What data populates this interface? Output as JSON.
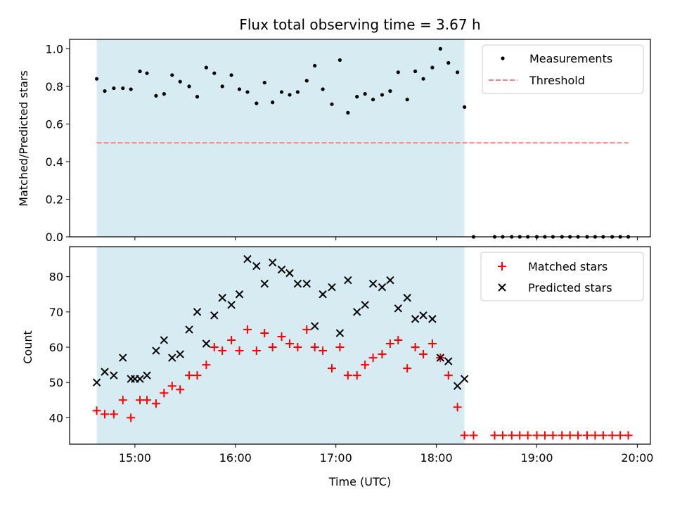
{
  "chart_data": [
    {
      "type": "scatter",
      "title": "Flux total observing time = 3.67 h",
      "xlabel": "",
      "ylabel": "Matched/Predicted stars",
      "xlim": [
        14.35,
        20.13
      ],
      "ylim": [
        0,
        1.05
      ],
      "yticks": [
        0.0,
        0.2,
        0.4,
        0.6,
        0.8,
        1.0
      ],
      "ytick_labels": [
        "0.0",
        "0.2",
        "0.4",
        "0.6",
        "0.8",
        "1.0"
      ],
      "shaded_span": [
        14.62,
        18.28
      ],
      "legend_position": "top-right",
      "series": [
        {
          "name": "Measurements",
          "marker": "dot",
          "color": "#000000",
          "x": [
            14.62,
            14.7,
            14.79,
            14.88,
            14.96,
            15.05,
            15.12,
            15.21,
            15.29,
            15.37,
            15.45,
            15.54,
            15.62,
            15.71,
            15.79,
            15.87,
            15.96,
            16.04,
            16.12,
            16.21,
            16.29,
            16.37,
            16.46,
            16.54,
            16.62,
            16.71,
            16.79,
            16.87,
            16.96,
            17.04,
            17.12,
            17.21,
            17.29,
            17.37,
            17.46,
            17.54,
            17.62,
            17.71,
            17.79,
            17.87,
            17.96,
            18.04,
            18.12,
            18.21,
            18.28,
            18.37,
            18.58,
            18.66,
            18.75,
            18.83,
            18.91,
            19.0,
            19.08,
            19.16,
            19.25,
            19.33,
            19.41,
            19.5,
            19.58,
            19.66,
            19.75,
            19.83,
            19.91
          ],
          "y": [
            0.84,
            0.775,
            0.79,
            0.79,
            0.785,
            0.88,
            0.87,
            0.75,
            0.76,
            0.86,
            0.825,
            0.8,
            0.745,
            0.9,
            0.87,
            0.8,
            0.86,
            0.785,
            0.77,
            0.71,
            0.82,
            0.715,
            0.77,
            0.755,
            0.77,
            0.83,
            0.91,
            0.785,
            0.705,
            0.94,
            0.66,
            0.745,
            0.76,
            0.73,
            0.755,
            0.775,
            0.875,
            0.73,
            0.88,
            0.84,
            0.9,
            1.0,
            0.925,
            0.875,
            0.69,
            0.0,
            0.0,
            0.0,
            0.0,
            0.0,
            0.0,
            0.0,
            0.0,
            0.0,
            0.0,
            0.0,
            0.0,
            0.0,
            0.0,
            0.0,
            0.0,
            0.0,
            0.0
          ]
        },
        {
          "name": "Threshold",
          "style": "dashed-line",
          "color": "#ff7f7f",
          "x": [
            14.62,
            19.91
          ],
          "y": [
            0.5,
            0.5
          ]
        }
      ]
    },
    {
      "type": "scatter",
      "title": "",
      "xlabel": "Time (UTC)",
      "ylabel": "Count",
      "xlim": [
        14.35,
        20.13
      ],
      "ylim": [
        32.5,
        88.5
      ],
      "yticks": [
        40,
        50,
        60,
        70,
        80
      ],
      "ytick_labels": [
        "40",
        "50",
        "60",
        "70",
        "80"
      ],
      "xticks": [
        15,
        16,
        17,
        18,
        19,
        20
      ],
      "xtick_labels": [
        "15:00",
        "16:00",
        "17:00",
        "18:00",
        "19:00",
        "20:00"
      ],
      "shaded_span": [
        14.62,
        18.28
      ],
      "legend_position": "top-right",
      "series": [
        {
          "name": "Matched stars",
          "marker": "plus",
          "color": "#ff0000",
          "x": [
            14.62,
            14.7,
            14.79,
            14.88,
            14.96,
            15.05,
            15.12,
            15.21,
            15.29,
            15.37,
            15.45,
            15.54,
            15.62,
            15.71,
            15.79,
            15.87,
            15.96,
            16.04,
            16.12,
            16.21,
            16.29,
            16.37,
            16.46,
            16.54,
            16.62,
            16.71,
            16.79,
            16.87,
            16.96,
            17.04,
            17.12,
            17.21,
            17.29,
            17.37,
            17.46,
            17.54,
            17.62,
            17.71,
            17.79,
            17.87,
            17.96,
            18.04,
            18.12,
            18.21,
            18.28,
            18.37,
            18.58,
            18.66,
            18.75,
            18.83,
            18.91,
            19.0,
            19.08,
            19.16,
            19.25,
            19.33,
            19.41,
            19.5,
            19.58,
            19.66,
            19.75,
            19.83,
            19.91
          ],
          "y": [
            42,
            41,
            41,
            45,
            40,
            45,
            45,
            44,
            47,
            49,
            48,
            52,
            52,
            55,
            60,
            59,
            62,
            59,
            65,
            59,
            64,
            60,
            63,
            61,
            60,
            65,
            60,
            59,
            54,
            60,
            52,
            52,
            55,
            57,
            58,
            61,
            62,
            54,
            60,
            58,
            61,
            57,
            52,
            43,
            35,
            35,
            35,
            35,
            35,
            35,
            35,
            35,
            35,
            35,
            35,
            35,
            35,
            35,
            35,
            35,
            35,
            35,
            35
          ]
        },
        {
          "name": "Predicted stars",
          "marker": "x",
          "color": "#000000",
          "x": [
            14.62,
            14.7,
            14.79,
            14.88,
            14.96,
            15.0,
            15.05,
            15.12,
            15.21,
            15.29,
            15.37,
            15.45,
            15.54,
            15.62,
            15.71,
            15.79,
            15.87,
            15.96,
            16.04,
            16.12,
            16.21,
            16.29,
            16.37,
            16.46,
            16.54,
            16.62,
            16.71,
            16.79,
            16.87,
            16.96,
            17.04,
            17.12,
            17.21,
            17.29,
            17.37,
            17.46,
            17.54,
            17.62,
            17.71,
            17.79,
            17.87,
            17.96,
            18.04,
            18.12,
            18.21,
            18.28
          ],
          "y": [
            50,
            53,
            52,
            57,
            51,
            51,
            51,
            52,
            59,
            62,
            57,
            58,
            65,
            70,
            61,
            69,
            74,
            72,
            75,
            85,
            83,
            78,
            84,
            82,
            81,
            78,
            78,
            66,
            75,
            77,
            64,
            79,
            70,
            72,
            78,
            77,
            79,
            71,
            74,
            68,
            69,
            68,
            57,
            56,
            49,
            51
          ]
        }
      ]
    }
  ]
}
